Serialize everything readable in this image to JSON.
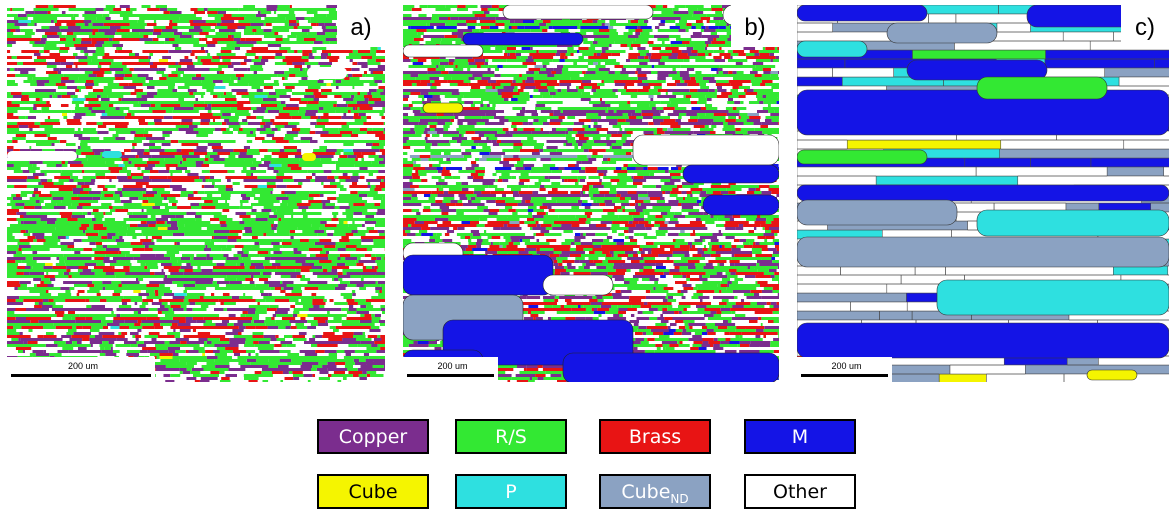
{
  "panels": [
    {
      "label": "a)",
      "scale_bar": "200 um"
    },
    {
      "label": "b)",
      "scale_bar": "200 um"
    },
    {
      "label": "c)",
      "scale_bar": "200 um"
    }
  ],
  "legend": [
    {
      "label": "Copper",
      "color": "#7b2d8e"
    },
    {
      "label": "R/S",
      "color": "#33e833"
    },
    {
      "label": "Brass",
      "color": "#e81414"
    },
    {
      "label": "M",
      "color": "#1414e6"
    },
    {
      "label": "Cube",
      "color": "#f5f500"
    },
    {
      "label": "P",
      "color": "#2ee0e0"
    },
    {
      "label": "Cube",
      "subscript": "ND",
      "color": "#8ba2c2"
    },
    {
      "label": "Other",
      "color": "#ffffff"
    }
  ]
}
